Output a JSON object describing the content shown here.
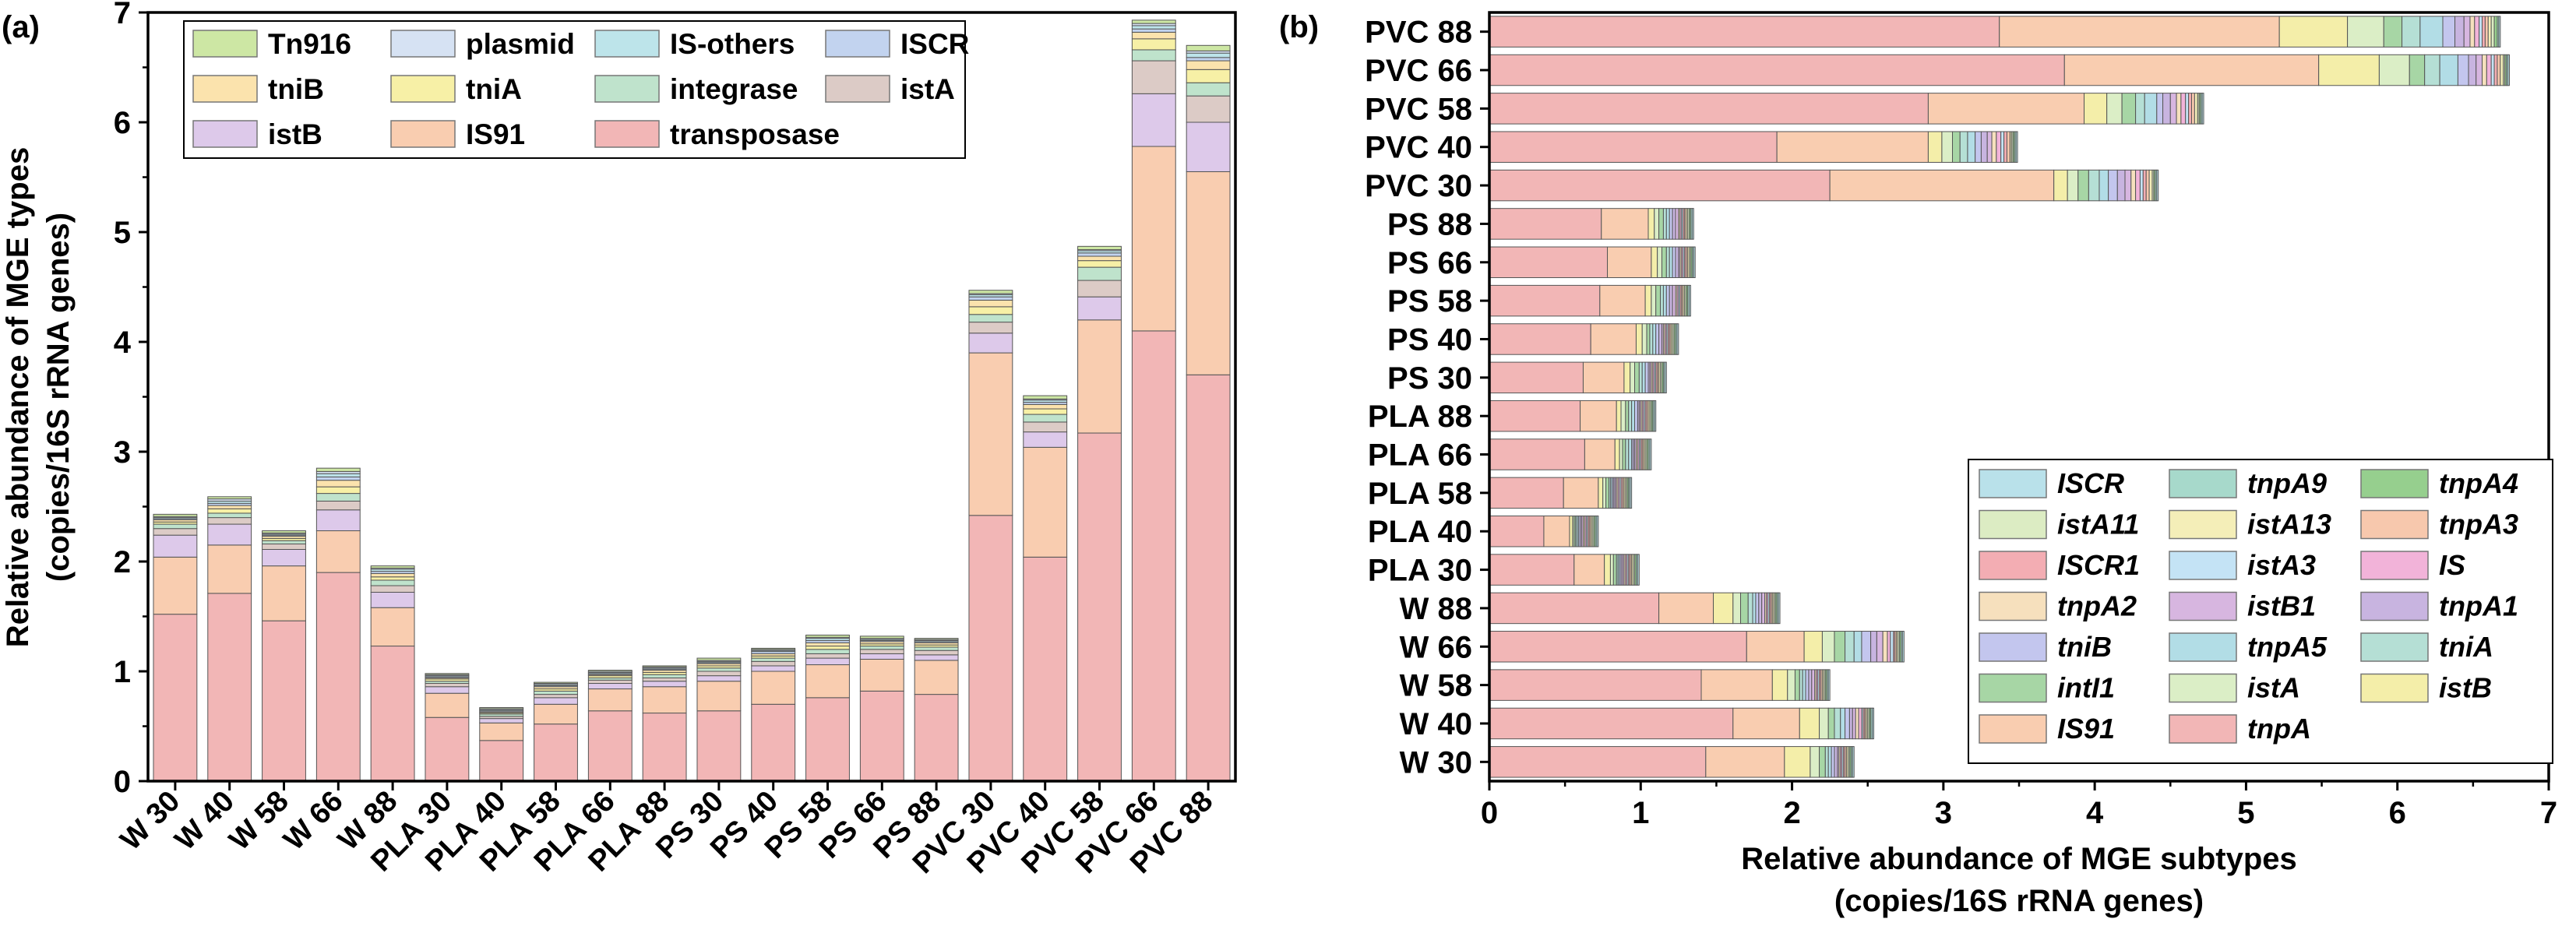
{
  "panel_labels": {
    "a": "(a)",
    "b": "(b)"
  },
  "chart_data": [
    {
      "panel": "(a)",
      "type": "stacked-bar",
      "orientation": "vertical",
      "title": "",
      "xlabel": "",
      "ylabel_line1": "Relative abundance of MGE types",
      "ylabel_line2": "(copies/16S rRNA genes)",
      "ylim": [
        0,
        7
      ],
      "yticks": [
        0,
        1,
        2,
        3,
        4,
        5,
        6,
        7
      ],
      "legend_position": "top-left",
      "categories": [
        "W 30",
        "W 40",
        "W 58",
        "W 66",
        "W 88",
        "PLA 30",
        "PLA 40",
        "PLA 58",
        "PLA 66",
        "PLA 88",
        "PS 30",
        "PS 40",
        "PS 58",
        "PS 66",
        "PS 88",
        "PVC 30",
        "PVC 40",
        "PVC 58",
        "PVC 66",
        "PVC 88"
      ],
      "legend_order": [
        "Tn916",
        "plasmid",
        "IS-others",
        "ISCR",
        "tniB",
        "tniA",
        "integrase",
        "istA",
        "istB",
        "IS91",
        "transposase"
      ],
      "series": [
        {
          "name": "transposase",
          "color": "#f2b6b6",
          "values": [
            1.52,
            1.71,
            1.46,
            1.9,
            1.23,
            0.58,
            0.37,
            0.52,
            0.64,
            0.62,
            0.64,
            0.7,
            0.76,
            0.82,
            0.79,
            2.42,
            2.04,
            3.17,
            4.1,
            3.7
          ]
        },
        {
          "name": "IS91",
          "color": "#f9cdb0",
          "values": [
            0.52,
            0.44,
            0.5,
            0.38,
            0.35,
            0.22,
            0.16,
            0.18,
            0.2,
            0.24,
            0.27,
            0.3,
            0.3,
            0.29,
            0.31,
            1.48,
            1.0,
            1.03,
            1.68,
            1.85
          ]
        },
        {
          "name": "istB",
          "color": "#ddc9ea",
          "values": [
            0.2,
            0.19,
            0.15,
            0.19,
            0.14,
            0.06,
            0.04,
            0.06,
            0.05,
            0.05,
            0.05,
            0.05,
            0.06,
            0.05,
            0.05,
            0.18,
            0.14,
            0.21,
            0.48,
            0.45
          ]
        },
        {
          "name": "istA",
          "color": "#dccbc6",
          "values": [
            0.06,
            0.06,
            0.05,
            0.08,
            0.06,
            0.03,
            0.02,
            0.03,
            0.03,
            0.03,
            0.04,
            0.04,
            0.04,
            0.04,
            0.04,
            0.1,
            0.09,
            0.15,
            0.3,
            0.24
          ]
        },
        {
          "name": "integrase",
          "color": "#bfe3cc",
          "values": [
            0.04,
            0.04,
            0.03,
            0.07,
            0.05,
            0.02,
            0.02,
            0.03,
            0.02,
            0.03,
            0.03,
            0.03,
            0.04,
            0.03,
            0.03,
            0.07,
            0.07,
            0.12,
            0.1,
            0.12
          ]
        },
        {
          "name": "tniA",
          "color": "#f7f0a6",
          "values": [
            0.02,
            0.04,
            0.02,
            0.06,
            0.03,
            0.02,
            0.01,
            0.02,
            0.02,
            0.02,
            0.02,
            0.02,
            0.03,
            0.02,
            0.02,
            0.07,
            0.05,
            0.06,
            0.1,
            0.12
          ]
        },
        {
          "name": "tniB",
          "color": "#fbe3ad",
          "values": [
            0.02,
            0.03,
            0.02,
            0.06,
            0.03,
            0.01,
            0.01,
            0.02,
            0.01,
            0.02,
            0.02,
            0.02,
            0.03,
            0.02,
            0.02,
            0.06,
            0.04,
            0.04,
            0.06,
            0.08
          ]
        },
        {
          "name": "ISCR",
          "color": "#c2d3ef",
          "values": [
            0.01,
            0.02,
            0.01,
            0.03,
            0.02,
            0.01,
            0.01,
            0.01,
            0.01,
            0.01,
            0.01,
            0.02,
            0.02,
            0.01,
            0.01,
            0.03,
            0.02,
            0.03,
            0.03,
            0.03
          ]
        },
        {
          "name": "IS-others",
          "color": "#bde4ea",
          "values": [
            0.01,
            0.02,
            0.01,
            0.03,
            0.02,
            0.01,
            0.01,
            0.01,
            0.01,
            0.01,
            0.01,
            0.01,
            0.02,
            0.01,
            0.01,
            0.02,
            0.02,
            0.02,
            0.03,
            0.04
          ]
        },
        {
          "name": "plasmid",
          "color": "#d6e2f3",
          "values": [
            0.01,
            0.02,
            0.01,
            0.02,
            0.01,
            0.01,
            0.01,
            0.01,
            0.01,
            0.01,
            0.01,
            0.01,
            0.01,
            0.01,
            0.01,
            0.01,
            0.01,
            0.01,
            0.02,
            0.02
          ]
        },
        {
          "name": "Tn916",
          "color": "#cde7a4",
          "values": [
            0.02,
            0.02,
            0.02,
            0.03,
            0.02,
            0.01,
            0.01,
            0.01,
            0.01,
            0.01,
            0.02,
            0.01,
            0.02,
            0.02,
            0.01,
            0.03,
            0.03,
            0.03,
            0.03,
            0.05
          ]
        }
      ]
    },
    {
      "panel": "(b)",
      "type": "stacked-bar",
      "orientation": "horizontal",
      "title": "",
      "xlabel_line1": "Relative abundance of MGE subtypes",
      "xlabel_line2": "(copies/16S rRNA genes)",
      "ylabel": "",
      "xlim": [
        0,
        7
      ],
      "xticks": [
        0,
        1,
        2,
        3,
        4,
        5,
        6,
        7
      ],
      "legend_position": "bottom-right",
      "categories": [
        "PVC 88",
        "PVC 66",
        "PVC 58",
        "PVC 40",
        "PVC 30",
        "PS 88",
        "PS 66",
        "PS 58",
        "PS 40",
        "PS 30",
        "PLA 88",
        "PLA 66",
        "PLA 58",
        "PLA 40",
        "PLA 30",
        "W 88",
        "W 66",
        "W 58",
        "W 40",
        "W 30"
      ],
      "legend_order": [
        "ISCR",
        "tnpA9",
        "tnpA4",
        "istA11",
        "istA13",
        "tnpA3",
        "ISCR1",
        "istA3",
        "IS",
        "tnpA2",
        "istB1",
        "tnpA1",
        "tniB",
        "tnpA5",
        "tniA",
        "intI1",
        "istA",
        "istB",
        "IS91",
        "tnpA"
      ],
      "series": [
        {
          "name": "tnpA",
          "color": "#f2b6b6",
          "values": [
            3.37,
            3.8,
            2.9,
            1.9,
            2.25,
            0.74,
            0.78,
            0.73,
            0.67,
            0.62,
            0.6,
            0.63,
            0.49,
            0.36,
            0.56,
            1.12,
            1.7,
            1.4,
            1.61,
            1.43
          ]
        },
        {
          "name": "IS91",
          "color": "#f9cdb0",
          "values": [
            1.85,
            1.68,
            1.03,
            1.0,
            1.48,
            0.31,
            0.29,
            0.3,
            0.3,
            0.27,
            0.24,
            0.2,
            0.23,
            0.17,
            0.2,
            0.36,
            0.38,
            0.47,
            0.44,
            0.52
          ]
        },
        {
          "name": "istB",
          "color": "#f4eea9",
          "values": [
            0.45,
            0.4,
            0.15,
            0.09,
            0.09,
            0.04,
            0.04,
            0.04,
            0.04,
            0.04,
            0.03,
            0.03,
            0.03,
            0.02,
            0.04,
            0.13,
            0.12,
            0.1,
            0.13,
            0.17
          ]
        },
        {
          "name": "istA",
          "color": "#dbeec6",
          "values": [
            0.24,
            0.2,
            0.1,
            0.07,
            0.07,
            0.03,
            0.03,
            0.03,
            0.03,
            0.03,
            0.03,
            0.02,
            0.02,
            0.01,
            0.02,
            0.05,
            0.08,
            0.05,
            0.06,
            0.06
          ]
        },
        {
          "name": "intI1",
          "color": "#a7d6a5",
          "values": [
            0.12,
            0.1,
            0.09,
            0.05,
            0.07,
            0.03,
            0.03,
            0.03,
            0.02,
            0.03,
            0.02,
            0.02,
            0.02,
            0.01,
            0.02,
            0.05,
            0.07,
            0.03,
            0.04,
            0.04
          ]
        },
        {
          "name": "tniA",
          "color": "#b5dfd5",
          "values": [
            0.12,
            0.1,
            0.06,
            0.05,
            0.07,
            0.02,
            0.02,
            0.02,
            0.02,
            0.02,
            0.02,
            0.02,
            0.01,
            0.01,
            0.01,
            0.03,
            0.06,
            0.02,
            0.04,
            0.02
          ]
        },
        {
          "name": "tnpA5",
          "color": "#b2dde6",
          "values": [
            0.15,
            0.12,
            0.08,
            0.05,
            0.06,
            0.02,
            0.02,
            0.02,
            0.02,
            0.02,
            0.02,
            0.02,
            0.01,
            0.01,
            0.01,
            0.02,
            0.05,
            0.02,
            0.03,
            0.02
          ]
        },
        {
          "name": "tniB",
          "color": "#c3c6ee",
          "values": [
            0.08,
            0.07,
            0.04,
            0.04,
            0.06,
            0.02,
            0.02,
            0.02,
            0.02,
            0.02,
            0.02,
            0.01,
            0.01,
            0.01,
            0.01,
            0.02,
            0.06,
            0.02,
            0.03,
            0.02
          ]
        },
        {
          "name": "tnpA1",
          "color": "#c8b4e0",
          "values": [
            0.06,
            0.05,
            0.05,
            0.04,
            0.05,
            0.02,
            0.02,
            0.02,
            0.02,
            0.01,
            0.01,
            0.01,
            0.01,
            0.01,
            0.01,
            0.02,
            0.04,
            0.02,
            0.02,
            0.02
          ]
        },
        {
          "name": "istB1",
          "color": "#d7b6e0",
          "values": [
            0.04,
            0.04,
            0.04,
            0.03,
            0.04,
            0.02,
            0.01,
            0.02,
            0.01,
            0.01,
            0.01,
            0.01,
            0.01,
            0.01,
            0.01,
            0.02,
            0.04,
            0.02,
            0.02,
            0.01
          ]
        },
        {
          "name": "tnpA2",
          "color": "#f6e0bd",
          "values": [
            0.03,
            0.03,
            0.03,
            0.03,
            0.03,
            0.01,
            0.01,
            0.01,
            0.01,
            0.01,
            0.01,
            0.01,
            0.01,
            0.01,
            0.01,
            0.01,
            0.03,
            0.01,
            0.02,
            0.01
          ]
        },
        {
          "name": "IS",
          "color": "#f2b3d9",
          "values": [
            0.03,
            0.03,
            0.03,
            0.03,
            0.03,
            0.01,
            0.01,
            0.01,
            0.01,
            0.01,
            0.01,
            0.01,
            0.01,
            0.01,
            0.01,
            0.01,
            0.02,
            0.01,
            0.02,
            0.01
          ]
        },
        {
          "name": "istA3",
          "color": "#c4e3f5",
          "values": [
            0.02,
            0.02,
            0.02,
            0.02,
            0.02,
            0.01,
            0.01,
            0.01,
            0.01,
            0.01,
            0.01,
            0.01,
            0.01,
            0.01,
            0.01,
            0.01,
            0.02,
            0.01,
            0.01,
            0.01
          ]
        },
        {
          "name": "ISCR1",
          "color": "#f3adb3",
          "values": [
            0.02,
            0.02,
            0.02,
            0.02,
            0.02,
            0.01,
            0.01,
            0.01,
            0.01,
            0.01,
            0.01,
            0.01,
            0.01,
            0.01,
            0.01,
            0.01,
            0.01,
            0.01,
            0.01,
            0.01
          ]
        },
        {
          "name": "tnpA3",
          "color": "#f7c8ad",
          "values": [
            0.02,
            0.02,
            0.02,
            0.02,
            0.02,
            0.01,
            0.01,
            0.01,
            0.01,
            0.01,
            0.01,
            0.01,
            0.01,
            0.01,
            0.01,
            0.01,
            0.01,
            0.01,
            0.01,
            0.01
          ]
        },
        {
          "name": "istA13",
          "color": "#f4eeb8",
          "values": [
            0.02,
            0.02,
            0.02,
            0.01,
            0.02,
            0.01,
            0.01,
            0.01,
            0.01,
            0.01,
            0.01,
            0.01,
            0.01,
            0.01,
            0.01,
            0.01,
            0.01,
            0.01,
            0.01,
            0.01
          ]
        },
        {
          "name": "istA11",
          "color": "#dcecc3",
          "values": [
            0.02,
            0.01,
            0.01,
            0.01,
            0.01,
            0.01,
            0.01,
            0.01,
            0.01,
            0.01,
            0.01,
            0.01,
            0.01,
            0.01,
            0.01,
            0.01,
            0.01,
            0.01,
            0.01,
            0.01
          ]
        },
        {
          "name": "tnpA4",
          "color": "#96cf8e",
          "values": [
            0.02,
            0.01,
            0.01,
            0.01,
            0.01,
            0.01,
            0.01,
            0.01,
            0.01,
            0.01,
            0.01,
            0.01,
            0.01,
            0.01,
            0.01,
            0.01,
            0.01,
            0.01,
            0.01,
            0.01
          ]
        },
        {
          "name": "tnpA9",
          "color": "#a7d9cb",
          "values": [
            0.01,
            0.01,
            0.01,
            0.01,
            0.01,
            0.01,
            0.01,
            0.01,
            0.01,
            0.01,
            0.01,
            0.01,
            0.01,
            0.01,
            0.01,
            0.01,
            0.01,
            0.01,
            0.01,
            0.01
          ]
        },
        {
          "name": "ISCR",
          "color": "#b9e1ea",
          "values": [
            0.01,
            0.01,
            0.01,
            0.01,
            0.01,
            0.01,
            0.01,
            0.01,
            0.01,
            0.01,
            0.01,
            0.01,
            0.01,
            0.01,
            0.01,
            0.01,
            0.01,
            0.01,
            0.01,
            0.01
          ]
        }
      ]
    }
  ]
}
